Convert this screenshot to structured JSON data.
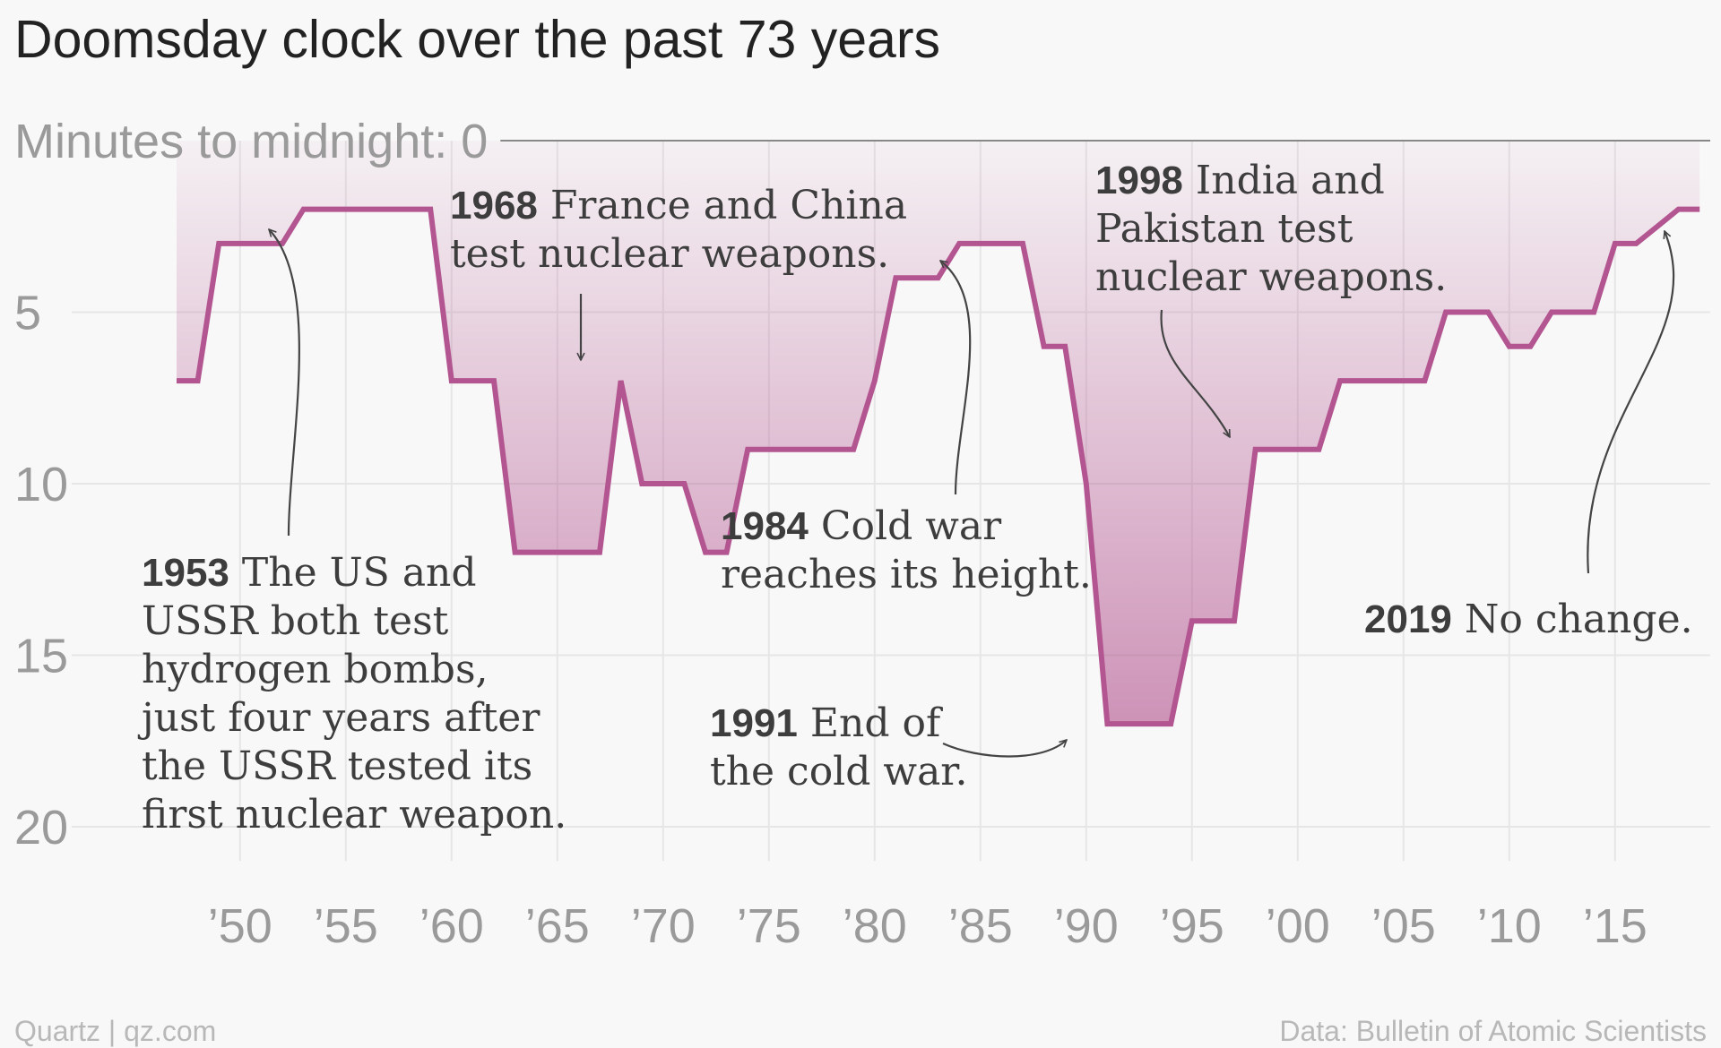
{
  "chart_data": {
    "type": "area",
    "title": "Doomsday clock over the past 73 years",
    "ylabel_prefix": "Minutes to midnight: ",
    "y_ticks": [
      0,
      5,
      10,
      15,
      20
    ],
    "ylim": [
      0,
      21
    ],
    "y_inverted": true,
    "xlim": [
      1944.5,
      2019.5
    ],
    "x_ticks": [
      {
        "year": 1950,
        "label": "’50"
      },
      {
        "year": 1955,
        "label": "’55"
      },
      {
        "year": 1960,
        "label": "’60"
      },
      {
        "year": 1965,
        "label": "’65"
      },
      {
        "year": 1970,
        "label": "’70"
      },
      {
        "year": 1975,
        "label": "’75"
      },
      {
        "year": 1980,
        "label": "’80"
      },
      {
        "year": 1985,
        "label": "’85"
      },
      {
        "year": 1990,
        "label": "’90"
      },
      {
        "year": 1995,
        "label": "’95"
      },
      {
        "year": 2000,
        "label": "’00"
      },
      {
        "year": 2005,
        "label": "’05"
      },
      {
        "year": 2010,
        "label": "’10"
      },
      {
        "year": 2015,
        "label": "’15"
      }
    ],
    "series": [
      {
        "color": "#b35590",
        "points": [
          [
            1947,
            7
          ],
          [
            1948,
            7
          ],
          [
            1949,
            3
          ],
          [
            1952,
            3
          ],
          [
            1953,
            2
          ],
          [
            1959,
            2
          ],
          [
            1960,
            7
          ],
          [
            1962,
            7
          ],
          [
            1963,
            12
          ],
          [
            1967,
            12
          ],
          [
            1968,
            7
          ],
          [
            1969,
            10
          ],
          [
            1971,
            10
          ],
          [
            1972,
            12
          ],
          [
            1973,
            12
          ],
          [
            1974,
            9
          ],
          [
            1979,
            9
          ],
          [
            1980,
            7
          ],
          [
            1981,
            4
          ],
          [
            1983,
            4
          ],
          [
            1984,
            3
          ],
          [
            1987,
            3
          ],
          [
            1988,
            6
          ],
          [
            1989,
            6
          ],
          [
            1990,
            10
          ],
          [
            1991,
            17
          ],
          [
            1994,
            17
          ],
          [
            1995,
            14
          ],
          [
            1997,
            14
          ],
          [
            1998,
            9
          ],
          [
            2001,
            9
          ],
          [
            2002,
            7
          ],
          [
            2006,
            7
          ],
          [
            2007,
            5
          ],
          [
            2009,
            5
          ],
          [
            2010,
            6
          ],
          [
            2011,
            6
          ],
          [
            2012,
            5
          ],
          [
            2014,
            5
          ],
          [
            2015,
            3
          ],
          [
            2016,
            3
          ],
          [
            2017,
            2.5
          ],
          [
            2018,
            2
          ],
          [
            2019,
            2
          ]
        ]
      }
    ],
    "annotations": [
      {
        "year": "1953",
        "lines": [
          "The US and",
          "USSR both test",
          "hydrogen bombs,",
          "just four years after",
          "the USSR tested its",
          "first nuclear weapon."
        ]
      },
      {
        "year": "1968",
        "lines": [
          "France and China",
          "test nuclear weapons."
        ]
      },
      {
        "year": "1984",
        "lines": [
          "Cold war",
          "reaches its height."
        ]
      },
      {
        "year": "1991",
        "lines": [
          "End of",
          "the cold war."
        ]
      },
      {
        "year": "1998",
        "lines": [
          "India and",
          "Pakistan test",
          "nuclear weapons."
        ]
      },
      {
        "year": "2019",
        "lines": [
          "No change."
        ]
      }
    ]
  },
  "footer": {
    "source_left": "Quartz | qz.com",
    "source_right": "Data: Bulletin of Atomic Scientists"
  }
}
